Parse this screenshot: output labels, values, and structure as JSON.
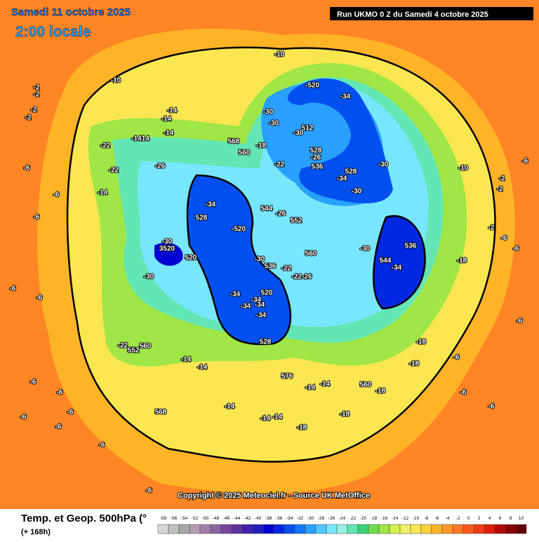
{
  "header": {
    "date": "Samedi 11 octobre 2025",
    "time": "2:00 locale",
    "run": "Run UKMO 0 Z du Samedi 4 octobre 2025"
  },
  "copyright": "Copyright © 2025 Meteociel.fr - Source UK MetOffice",
  "legend": {
    "title": "Temp. et Geop. 500hPa (°",
    "lead": "(+ 168h)",
    "labels": [
      -58,
      -56,
      -54,
      -52,
      -50,
      -48,
      -46,
      -44,
      -42,
      -40,
      -38,
      -36,
      -34,
      -32,
      -30,
      -28,
      -26,
      -24,
      -22,
      -20,
      -18,
      -16,
      -14,
      -12,
      -10,
      -8,
      -6,
      -4,
      -2,
      0,
      2,
      4,
      6,
      8,
      10
    ],
    "colors": [
      "#d8d8d8",
      "#c0c0c0",
      "#a8a8a8",
      "#b49cb4",
      "#a080a8",
      "#8c64a0",
      "#7848a0",
      "#6030a0",
      "#4020b0",
      "#2020c0",
      "#0000d0",
      "#0028e0",
      "#0050f0",
      "#1478f8",
      "#28a0ff",
      "#50c8ff",
      "#78e6ff",
      "#96f0e6",
      "#64e6b4",
      "#3cd278",
      "#6edc50",
      "#a0e646",
      "#d2f050",
      "#f0f064",
      "#fae650",
      "#ffd23c",
      "#ffb428",
      "#ff9628",
      "#ff7828",
      "#ff5a1e",
      "#f03c14",
      "#dc1e0a",
      "#b40a0a",
      "#8c0000",
      "#640000"
    ]
  },
  "map_labels": [
    "-10",
    "-10",
    "-14",
    "-14",
    "-14",
    "-1414",
    "-22",
    "-22",
    "-26",
    "-14",
    "568",
    "560",
    "-18",
    "-22",
    "-520",
    "-34",
    "-30",
    "-30",
    "512",
    "-30",
    "528",
    "-26",
    "536",
    "528",
    "-34",
    "-30",
    "-30",
    "-10",
    "-34",
    "528",
    "-520",
    "544",
    "-26",
    "552",
    "-30",
    "3520",
    "520",
    "-30",
    "560",
    "536",
    "-30",
    "-22",
    "-22-26",
    "-30",
    "536",
    "544",
    "-34",
    "-18",
    "-34",
    "520",
    "-34",
    "-34",
    "-34",
    "-34",
    "528",
    "-22",
    "560",
    "552",
    "-14",
    "-14",
    "576",
    "-14",
    "-14",
    "560",
    "-18",
    "-18",
    "-18",
    "-14",
    "568",
    "-14",
    "-14",
    "-18",
    "-18",
    "-2",
    "-2",
    "-2",
    "-2",
    "-6",
    "-6",
    "-6",
    "-6",
    "-6",
    "-6",
    "-6",
    "-6",
    "-6",
    "-6",
    "-6",
    "-6",
    "-2",
    "-2",
    "-2",
    "-6",
    "-6",
    "-6",
    "-6",
    "-6",
    "-6",
    "-6"
  ]
}
